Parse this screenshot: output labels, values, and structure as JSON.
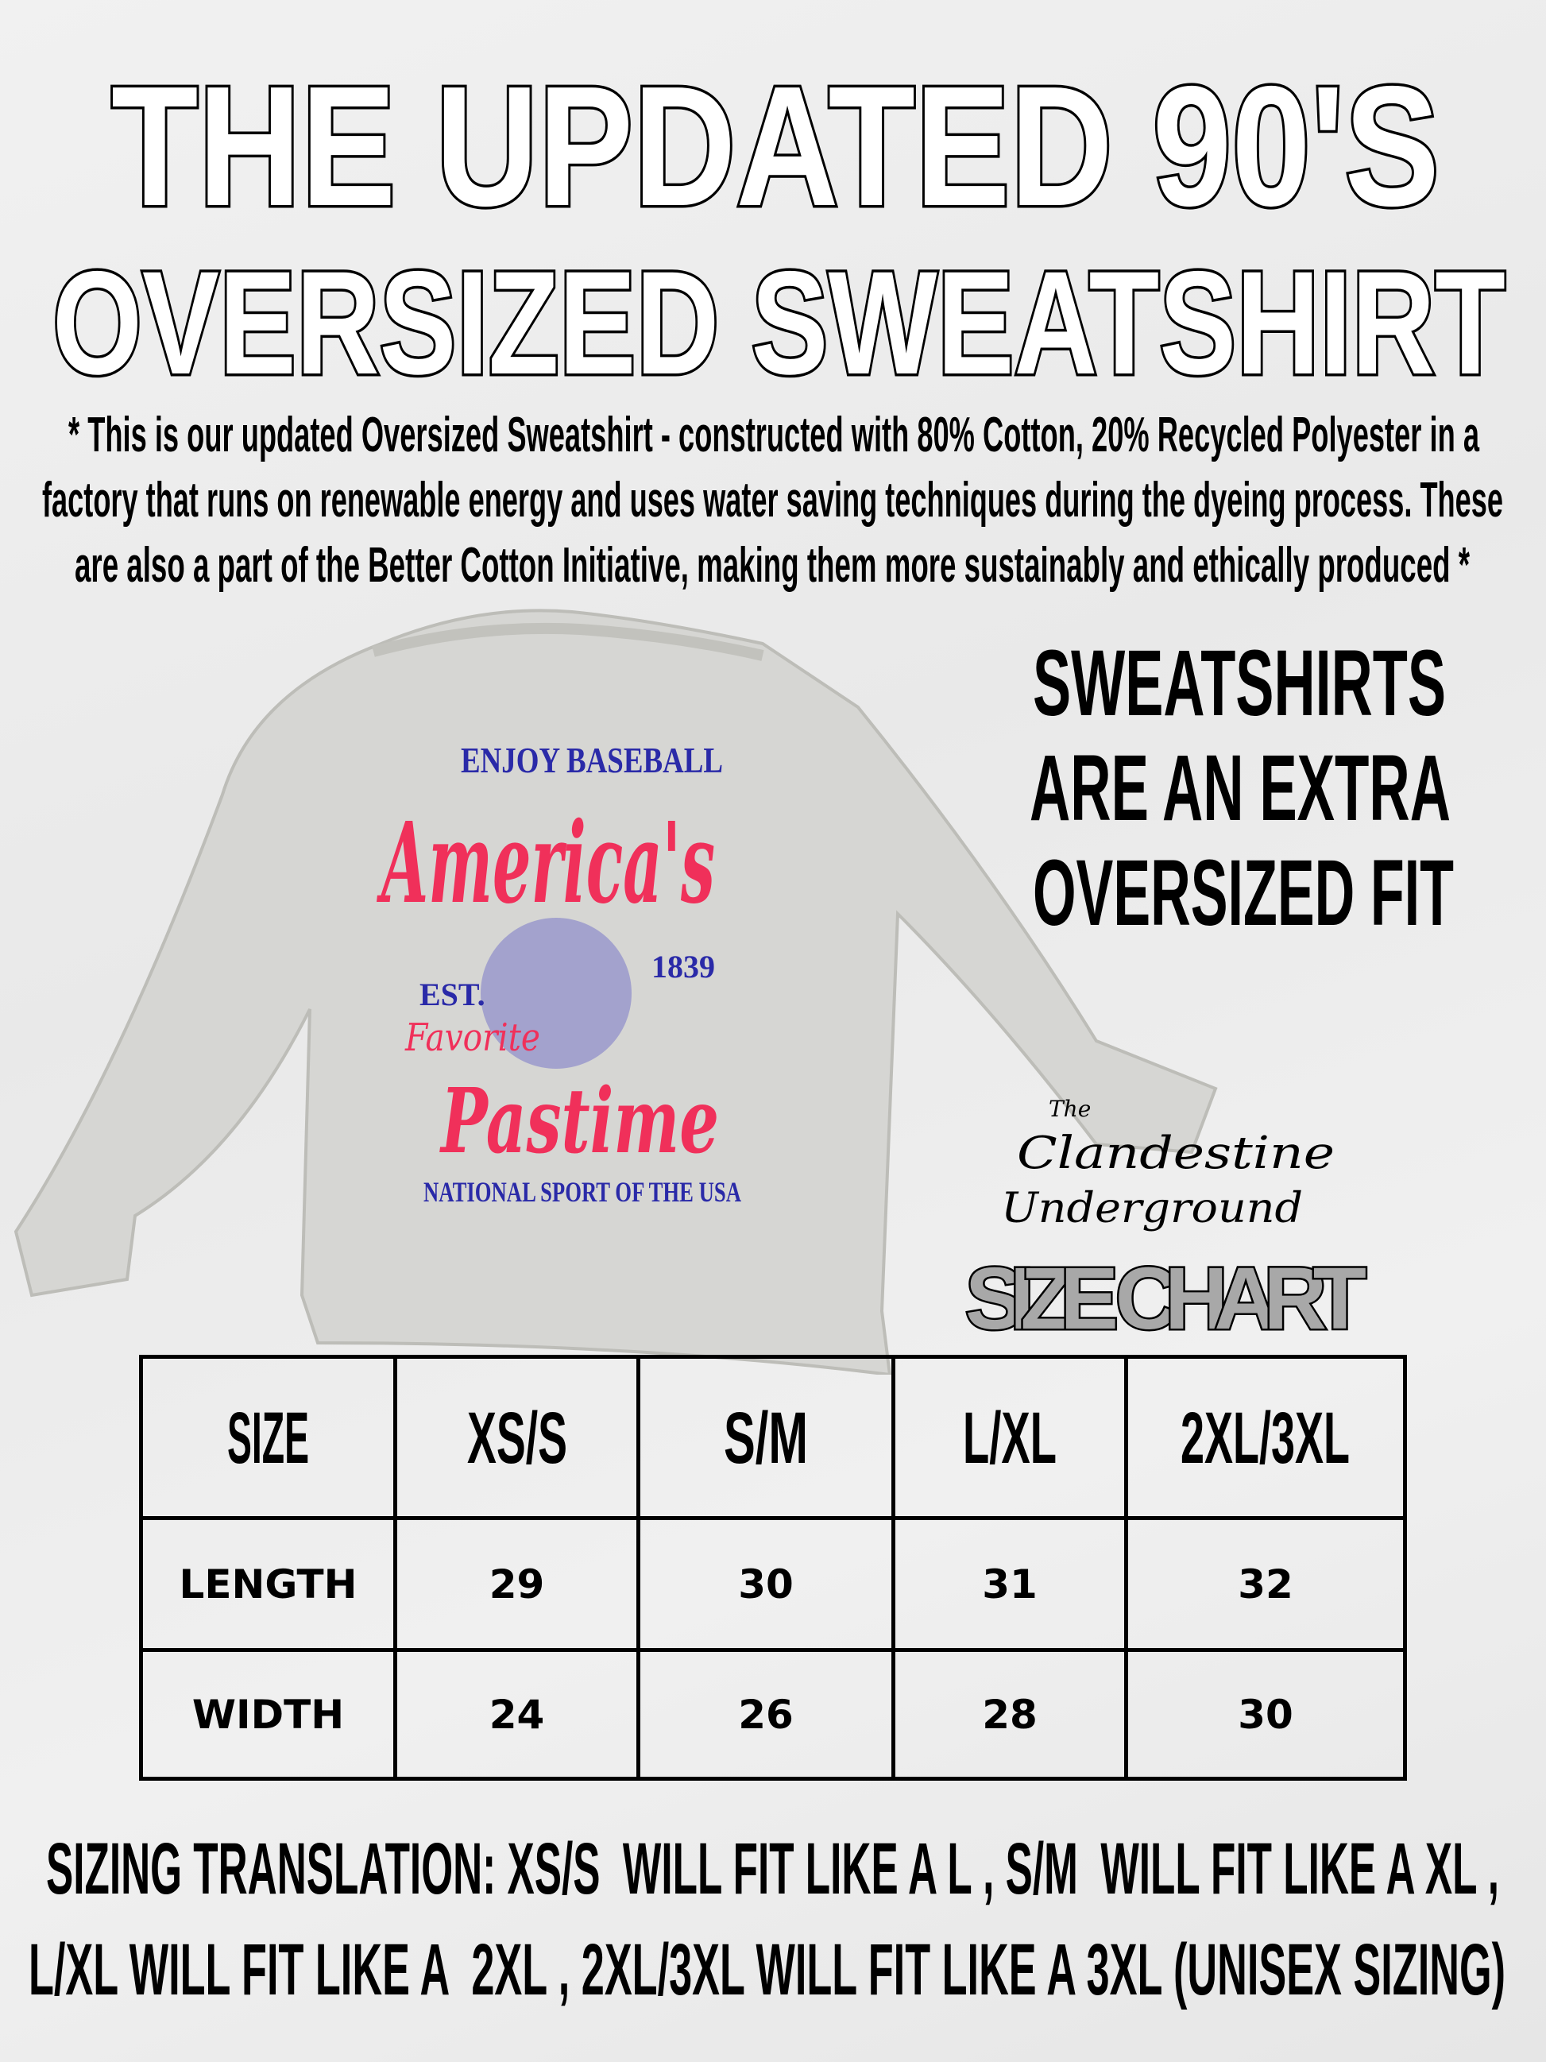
{
  "title": {
    "line1": "THE UPDATED 90'S",
    "line2": "OVERSIZED SWEATSHIRT"
  },
  "description": [
    "* This is our updated Oversized Sweatshirt - constructed with 80% Cotton, 20% Recycled Polyester in a",
    "factory that runs on renewable energy and uses water saving techniques during the dyeing process. These",
    "are also a part of the Better Cotton Initiative, making them more sustainably and ethically produced *"
  ],
  "product_image": {
    "print_text": [
      "ENJOY BASEBALL",
      "America's",
      "EST.",
      "1839",
      "Favorite",
      "Pastime",
      "NATIONAL SPORT OF THE USA"
    ],
    "colors": {
      "shirt": "#d6d6d3",
      "red": "#f0305a",
      "blue": "#2a2aa8"
    }
  },
  "fit_note": [
    "SWEATSHIRTS",
    "ARE AN EXTRA",
    "OVERSIZED FIT"
  ],
  "brand_logo": {
    "line1": "The",
    "line2": "Clandestine",
    "line3": "Underground"
  },
  "size_chart_title": "SIZE CHART",
  "size_table": {
    "headers": [
      "SIZE",
      "XS/S",
      "S/M",
      "L/XL",
      "2XL/3XL"
    ],
    "rows": [
      {
        "label": "LENGTH",
        "values": [
          "29",
          "30",
          "31",
          "32"
        ]
      },
      {
        "label": "WIDTH",
        "values": [
          "24",
          "26",
          "28",
          "30"
        ]
      }
    ]
  },
  "sizing_translation": [
    "SIZING TRANSLATION: XS/S  WILL FIT LIKE A L , S/M  WILL FIT LIKE A XL ,",
    "L/XL WILL FIT LIKE A  2XL , 2XL/3XL WILL FIT LIKE A 3XL (UNISEX SIZING)"
  ]
}
